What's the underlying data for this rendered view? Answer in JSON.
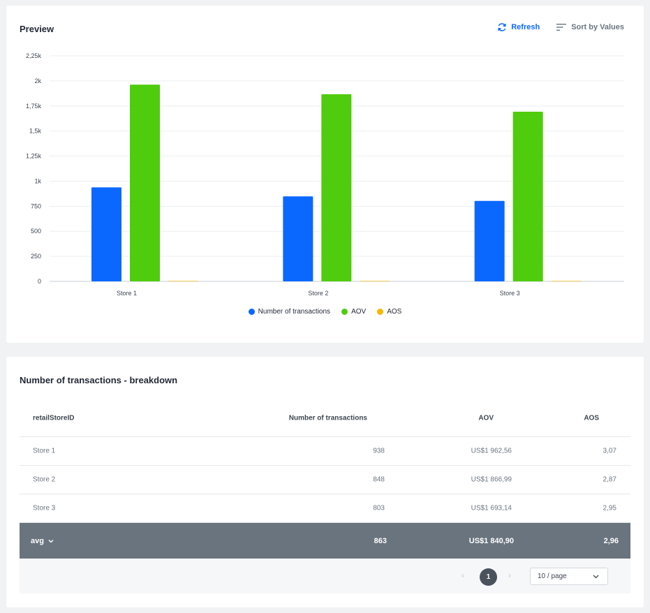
{
  "preview": {
    "title": "Preview",
    "refresh_label": "Refresh",
    "sort_label": "Sort by Values"
  },
  "chart_data": {
    "type": "bar",
    "categories": [
      "Store 1",
      "Store 2",
      "Store 3"
    ],
    "series": [
      {
        "name": "Number of transactions",
        "color": "#0b68ff",
        "values": [
          938,
          848,
          803
        ]
      },
      {
        "name": "AOV",
        "color": "#4fcc0d",
        "values": [
          1962.56,
          1866.99,
          1693.14
        ]
      },
      {
        "name": "AOS",
        "color": "#f5b800",
        "values": [
          3.07,
          2.87,
          2.95
        ]
      }
    ],
    "yticks": [
      "0",
      "250",
      "500",
      "750",
      "1k",
      "1,25k",
      "1,5k",
      "1,75k",
      "2k",
      "2,25k"
    ],
    "ylim": [
      0,
      2250
    ],
    "grid": true,
    "legend": "bottom"
  },
  "breakdown": {
    "title": "Number of transactions - breakdown",
    "columns": [
      "retailStoreID",
      "Number of transactions",
      "AOV",
      "AOS"
    ],
    "rows": [
      {
        "id": "Store 1",
        "num": "938",
        "aov": "US$1 962,56",
        "aos": "3,07"
      },
      {
        "id": "Store 2",
        "num": "848",
        "aov": "US$1 866,99",
        "aos": "2,87"
      },
      {
        "id": "Store 3",
        "num": "803",
        "aov": "US$1 693,14",
        "aos": "2,95"
      }
    ],
    "avg": {
      "label": "avg",
      "num": "863",
      "aov": "US$1 840,90",
      "aos": "2,96"
    }
  },
  "pagination": {
    "current_page": "1",
    "page_size": "10 / page"
  }
}
